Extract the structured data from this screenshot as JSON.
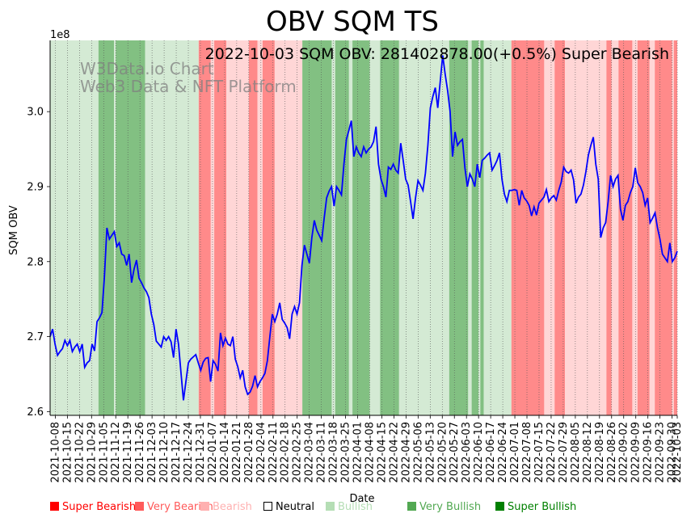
{
  "chart_data": {
    "type": "line",
    "title": "OBV SQM TS",
    "subtitle": "2022-10-03 SQM OBV: 281402878.00(+0.5%) Super Bearish",
    "watermark": [
      "W3Data.io Chart",
      "Web3 Data & NFT Platform"
    ],
    "xlabel": "Date",
    "ylabel": "SQM OBV",
    "y_multiplier_label": "1e8",
    "ylim": [
      2.595,
      3.095
    ],
    "yticks": [
      2.6,
      2.7,
      2.8,
      2.9,
      3.0
    ],
    "ytick_labels": [
      "2.6",
      "2.7",
      "2.8",
      "2.9",
      "3.0"
    ],
    "x_start": "2021-10-05",
    "x_end": "2022-10-03",
    "xtick_labels": [
      "2021-10-08",
      "2021-10-15",
      "2021-10-22",
      "2021-10-29",
      "2021-11-05",
      "2021-11-12",
      "2021-11-19",
      "2021-11-26",
      "2021-12-03",
      "2021-12-10",
      "2021-12-17",
      "2021-12-24",
      "2021-12-31",
      "2022-01-07",
      "2022-01-14",
      "2022-01-21",
      "2022-01-28",
      "2022-02-04",
      "2022-02-11",
      "2022-02-18",
      "2022-02-25",
      "2022-03-04",
      "2022-03-11",
      "2022-03-18",
      "2022-03-25",
      "2022-04-01",
      "2022-04-08",
      "2022-04-15",
      "2022-04-22",
      "2022-04-29",
      "2022-05-06",
      "2022-05-13",
      "2022-05-20",
      "2022-05-27",
      "2022-06-03",
      "2022-06-10",
      "2022-06-17",
      "2022-06-24",
      "2022-07-01",
      "2022-07-08",
      "2022-07-15",
      "2022-07-22",
      "2022-07-29",
      "2022-08-05",
      "2022-08-12",
      "2022-08-19",
      "2022-08-26",
      "2022-09-02",
      "2022-09-09",
      "2022-09-16",
      "2022-09-23",
      "2022-09-30",
      "2022-10-03"
    ],
    "series": [
      {
        "name": "SQM OBV",
        "color": "#0000ff",
        "values": [
          2.7,
          2.71,
          2.69,
          2.675,
          2.68,
          2.684,
          2.695,
          2.688,
          2.695,
          2.68,
          2.686,
          2.69,
          2.68,
          2.69,
          2.659,
          2.665,
          2.668,
          2.69,
          2.681,
          2.72,
          2.725,
          2.732,
          2.78,
          2.845,
          2.83,
          2.835,
          2.84,
          2.82,
          2.825,
          2.81,
          2.808,
          2.795,
          2.81,
          2.772,
          2.79,
          2.802,
          2.778,
          2.772,
          2.765,
          2.76,
          2.752,
          2.73,
          2.716,
          2.694,
          2.69,
          2.686,
          2.7,
          2.695,
          2.7,
          2.693,
          2.672,
          2.71,
          2.69,
          2.652,
          2.615,
          2.64,
          2.665,
          2.67,
          2.673,
          2.676,
          2.665,
          2.655,
          2.666,
          2.671,
          2.672,
          2.64,
          2.668,
          2.663,
          2.654,
          2.705,
          2.688,
          2.698,
          2.69,
          2.688,
          2.7,
          2.67,
          2.66,
          2.645,
          2.655,
          2.633,
          2.623,
          2.626,
          2.634,
          2.648,
          2.633,
          2.64,
          2.645,
          2.651,
          2.668,
          2.7,
          2.73,
          2.72,
          2.73,
          2.745,
          2.723,
          2.718,
          2.712,
          2.697,
          2.73,
          2.74,
          2.73,
          2.745,
          2.795,
          2.822,
          2.81,
          2.798,
          2.832,
          2.855,
          2.842,
          2.835,
          2.828,
          2.858,
          2.885,
          2.894,
          2.9,
          2.874,
          2.9,
          2.895,
          2.889,
          2.93,
          2.963,
          2.975,
          2.988,
          2.94,
          2.953,
          2.945,
          2.94,
          2.953,
          2.945,
          2.95,
          2.953,
          2.96,
          2.98,
          2.93,
          2.91,
          2.9,
          2.886,
          2.926,
          2.923,
          2.93,
          2.922,
          2.918,
          2.958,
          2.935,
          2.91,
          2.902,
          2.88,
          2.857,
          2.885,
          2.908,
          2.902,
          2.895,
          2.918,
          2.955,
          3.005,
          3.02,
          3.032,
          3.005,
          3.04,
          3.075,
          3.05,
          3.028,
          3.0,
          2.94,
          2.973,
          2.955,
          2.96,
          2.963,
          2.925,
          2.9,
          2.917,
          2.91,
          2.9,
          2.93,
          2.912,
          2.935,
          2.938,
          2.942,
          2.945,
          2.922,
          2.928,
          2.935,
          2.945,
          2.91,
          2.89,
          2.88,
          2.895,
          2.895,
          2.896,
          2.895,
          2.875,
          2.895,
          2.885,
          2.881,
          2.875,
          2.861,
          2.873,
          2.862,
          2.878,
          2.882,
          2.886,
          2.896,
          2.88,
          2.885,
          2.888,
          2.882,
          2.895,
          2.906,
          2.926,
          2.92,
          2.918,
          2.922,
          2.909,
          2.878,
          2.886,
          2.89,
          2.902,
          2.92,
          2.942,
          2.955,
          2.966,
          2.93,
          2.91,
          2.832,
          2.845,
          2.852,
          2.88,
          2.915,
          2.9,
          2.91,
          2.915,
          2.87,
          2.855,
          2.875,
          2.88,
          2.892,
          2.9,
          2.925,
          2.905,
          2.9,
          2.892,
          2.875,
          2.885,
          2.852,
          2.858,
          2.865,
          2.845,
          2.83,
          2.81,
          2.805,
          2.8,
          2.825,
          2.8,
          2.805,
          2.814
        ]
      }
    ],
    "background_bands": [
      {
        "label": "Bullish",
        "from": "2021-10-05",
        "to": "2021-11-02"
      },
      {
        "label": "Very Bullish",
        "from": "2021-11-02",
        "to": "2021-11-11"
      },
      {
        "label": "Bullish",
        "from": "2021-11-11",
        "to": "2021-11-12"
      },
      {
        "label": "Very Bullish",
        "from": "2021-11-12",
        "to": "2021-11-29"
      },
      {
        "label": "Bullish",
        "from": "2021-11-29",
        "to": "2021-12-30"
      },
      {
        "label": "Very Bearish",
        "from": "2021-12-30",
        "to": "2022-01-06"
      },
      {
        "label": "Bearish",
        "from": "2022-01-06",
        "to": "2022-01-08"
      },
      {
        "label": "Very Bearish",
        "from": "2022-01-08",
        "to": "2022-01-15"
      },
      {
        "label": "Bearish",
        "from": "2022-01-15",
        "to": "2022-01-28"
      },
      {
        "label": "Very Bearish",
        "from": "2022-01-28",
        "to": "2022-02-02"
      },
      {
        "label": "Bearish",
        "from": "2022-02-02",
        "to": "2022-02-05"
      },
      {
        "label": "Very Bearish",
        "from": "2022-02-05",
        "to": "2022-02-12"
      },
      {
        "label": "Bearish",
        "from": "2022-02-12",
        "to": "2022-02-28"
      },
      {
        "label": "Very Bullish",
        "from": "2022-02-28",
        "to": "2022-03-17"
      },
      {
        "label": "Bullish",
        "from": "2022-03-17",
        "to": "2022-03-19"
      },
      {
        "label": "Very Bullish",
        "from": "2022-03-19",
        "to": "2022-03-27"
      },
      {
        "label": "Bullish",
        "from": "2022-03-27",
        "to": "2022-03-29"
      },
      {
        "label": "Very Bullish",
        "from": "2022-03-29",
        "to": "2022-04-08"
      },
      {
        "label": "Bullish",
        "from": "2022-04-08",
        "to": "2022-04-14"
      },
      {
        "label": "Very Bullish",
        "from": "2022-04-14",
        "to": "2022-04-25"
      },
      {
        "label": "Bullish",
        "from": "2022-04-25",
        "to": "2022-05-24"
      },
      {
        "label": "Very Bullish",
        "from": "2022-05-24",
        "to": "2022-06-04"
      },
      {
        "label": "Bullish",
        "from": "2022-06-04",
        "to": "2022-06-06"
      },
      {
        "label": "Very Bullish",
        "from": "2022-06-06",
        "to": "2022-06-10"
      },
      {
        "label": "Bullish",
        "from": "2022-06-10",
        "to": "2022-06-11"
      },
      {
        "label": "Very Bullish",
        "from": "2022-06-11",
        "to": "2022-06-13"
      },
      {
        "label": "Bullish",
        "from": "2022-06-13",
        "to": "2022-06-29"
      },
      {
        "label": "Very Bearish",
        "from": "2022-06-29",
        "to": "2022-07-18"
      },
      {
        "label": "Bearish",
        "from": "2022-07-18",
        "to": "2022-07-24"
      },
      {
        "label": "Very Bearish",
        "from": "2022-07-24",
        "to": "2022-07-30"
      },
      {
        "label": "Bearish",
        "from": "2022-07-30",
        "to": "2022-08-23"
      },
      {
        "label": "Very Bearish",
        "from": "2022-08-23",
        "to": "2022-08-26"
      },
      {
        "label": "Bearish",
        "from": "2022-08-26",
        "to": "2022-08-30"
      },
      {
        "label": "Very Bearish",
        "from": "2022-08-30",
        "to": "2022-09-07"
      },
      {
        "label": "Bearish",
        "from": "2022-09-07",
        "to": "2022-09-10"
      },
      {
        "label": "Very Bearish",
        "from": "2022-09-10",
        "to": "2022-09-17"
      },
      {
        "label": "Bearish",
        "from": "2022-09-17",
        "to": "2022-09-20"
      },
      {
        "label": "Very Bearish",
        "from": "2022-09-20",
        "to": "2022-09-30"
      },
      {
        "label": "Bearish",
        "from": "2022-09-30",
        "to": "2022-10-01"
      },
      {
        "label": "Very Bearish",
        "from": "2022-10-01",
        "to": "2022-10-03"
      }
    ],
    "legend": [
      {
        "label": "Super Bearish",
        "color": "#ff0000",
        "text_color": "#ff0000"
      },
      {
        "label": "Very Bearish",
        "color": "#ff5a5a",
        "text_color": "#ff5a5a"
      },
      {
        "label": "Bearish",
        "color": "#ffb0b0",
        "text_color": "#ffb0b0"
      },
      {
        "label": "Neutral",
        "color": "#ffffff",
        "text_color": "#000000"
      },
      {
        "label": "Bullish",
        "color": "#b5deb5",
        "text_color": "#b5deb5"
      },
      {
        "label": "Very Bullish",
        "color": "#52a852",
        "text_color": "#52a852"
      },
      {
        "label": "Super Bullish",
        "color": "#008000",
        "text_color": "#008000"
      }
    ],
    "band_colors": {
      "Bullish": "#d4ead4",
      "Very Bullish": "#82c082",
      "Bearish": "#ffd6d6",
      "Very Bearish": "#ff8a8a"
    },
    "legend_position": "bottom"
  }
}
